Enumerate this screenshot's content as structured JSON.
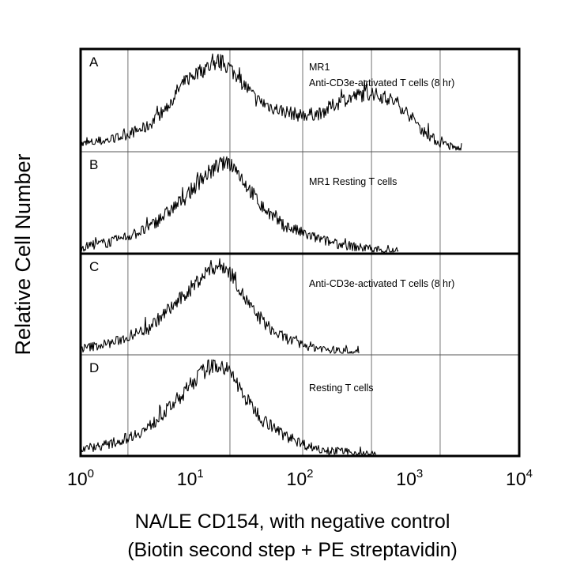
{
  "chart_data": {
    "type": "histogram",
    "y_axis_label": "Relative Cell Number",
    "x_axis_label_line1": "NA/LE CD154, with negative control",
    "x_axis_label_line2": "(Biotin second step + PE streptavidin)",
    "x_scale": "log",
    "x_range": [
      1,
      10000
    ],
    "x_ticks": [
      {
        "base": "10",
        "exp": "0",
        "value": 1
      },
      {
        "base": "10",
        "exp": "1",
        "value": 10
      },
      {
        "base": "10",
        "exp": "2",
        "value": 100
      },
      {
        "base": "10",
        "exp": "3",
        "value": 1000
      },
      {
        "base": "10",
        "exp": "4",
        "value": 10000
      }
    ],
    "gridlines_at": [
      2.7,
      23,
      106,
      450,
      1900
    ],
    "panels": [
      {
        "id": "A",
        "letter": "A",
        "desc1": "MR1",
        "desc2": "Anti-CD3e-activated T cells (8 hr)",
        "curve": [
          [
            1,
            0.06
          ],
          [
            2,
            0.12
          ],
          [
            4,
            0.25
          ],
          [
            6,
            0.45
          ],
          [
            8,
            0.68
          ],
          [
            10,
            0.8
          ],
          [
            14,
            0.9
          ],
          [
            18,
            0.97
          ],
          [
            22,
            0.92
          ],
          [
            28,
            0.78
          ],
          [
            40,
            0.55
          ],
          [
            60,
            0.45
          ],
          [
            100,
            0.38
          ],
          [
            150,
            0.4
          ],
          [
            250,
            0.55
          ],
          [
            400,
            0.62
          ],
          [
            600,
            0.58
          ],
          [
            800,
            0.5
          ],
          [
            1000,
            0.38
          ],
          [
            1300,
            0.22
          ],
          [
            1800,
            0.09
          ],
          [
            2500,
            0.03
          ],
          [
            3000,
            0.0
          ]
        ]
      },
      {
        "id": "B",
        "letter": "B",
        "desc1": "MR1 Resting T cells",
        "desc2": "",
        "curve": [
          [
            1,
            0.05
          ],
          [
            2,
            0.12
          ],
          [
            4,
            0.25
          ],
          [
            6,
            0.42
          ],
          [
            9,
            0.6
          ],
          [
            13,
            0.82
          ],
          [
            18,
            0.95
          ],
          [
            22,
            1.0
          ],
          [
            26,
            0.92
          ],
          [
            32,
            0.75
          ],
          [
            45,
            0.5
          ],
          [
            70,
            0.3
          ],
          [
            120,
            0.18
          ],
          [
            200,
            0.1
          ],
          [
            350,
            0.05
          ],
          [
            600,
            0.02
          ],
          [
            800,
            0.0
          ]
        ]
      },
      {
        "id": "C",
        "letter": "C",
        "desc1": "Anti-CD3e-activated T cells (8 hr)",
        "desc2": "",
        "curve": [
          [
            1,
            0.05
          ],
          [
            2,
            0.12
          ],
          [
            4,
            0.27
          ],
          [
            6,
            0.45
          ],
          [
            9,
            0.65
          ],
          [
            12,
            0.82
          ],
          [
            16,
            0.96
          ],
          [
            20,
            0.97
          ],
          [
            25,
            0.85
          ],
          [
            30,
            0.65
          ],
          [
            40,
            0.42
          ],
          [
            60,
            0.22
          ],
          [
            100,
            0.1
          ],
          [
            160,
            0.05
          ],
          [
            250,
            0.02
          ],
          [
            350,
            0.0
          ]
        ]
      },
      {
        "id": "D",
        "letter": "D",
        "desc1": "Resting T cells",
        "desc2": "",
        "curve": [
          [
            1,
            0.06
          ],
          [
            2,
            0.12
          ],
          [
            4,
            0.28
          ],
          [
            6,
            0.48
          ],
          [
            9,
            0.7
          ],
          [
            12,
            0.88
          ],
          [
            16,
            1.0
          ],
          [
            20,
            0.98
          ],
          [
            25,
            0.85
          ],
          [
            32,
            0.62
          ],
          [
            45,
            0.4
          ],
          [
            70,
            0.22
          ],
          [
            120,
            0.09
          ],
          [
            200,
            0.04
          ],
          [
            350,
            0.01
          ],
          [
            500,
            0.0
          ]
        ]
      }
    ]
  }
}
